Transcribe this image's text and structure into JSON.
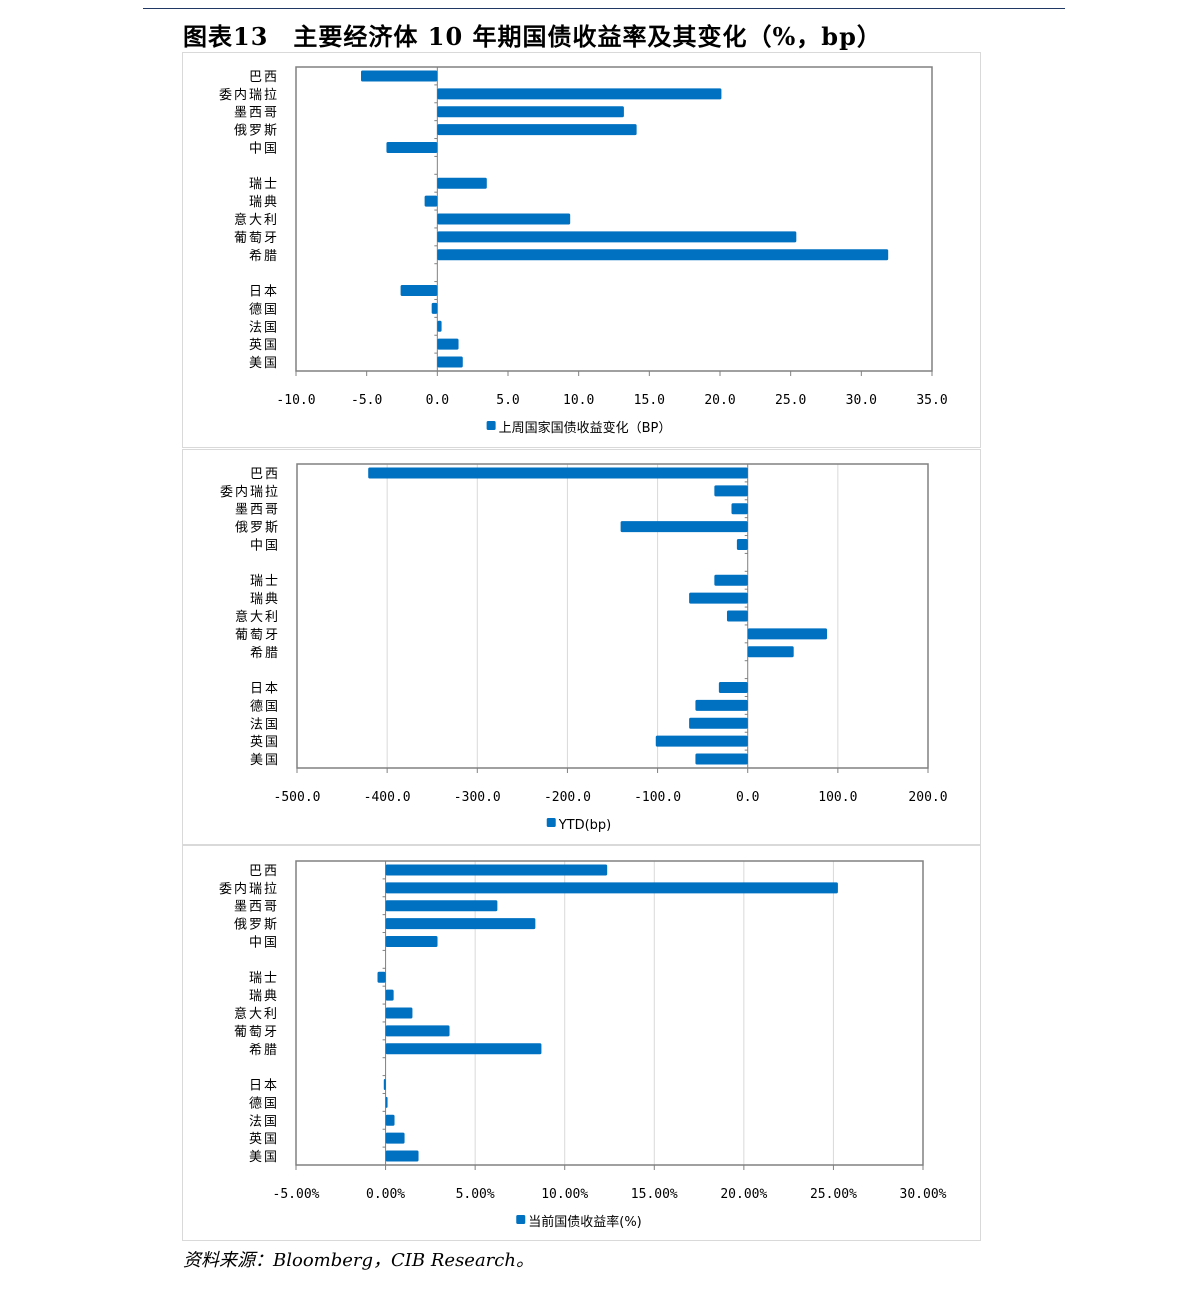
{
  "title": "图表13　主要经济体 10 年期国债收益率及其变化（%，bp）",
  "source": "资料来源：Bloomberg，CIB Research。",
  "colors": {
    "bar": "#0070c0",
    "axis": "#808080",
    "grid": "#d9d9d9"
  },
  "chart_data": [
    {
      "type": "bar",
      "orientation": "horizontal",
      "categories": [
        "巴西",
        "委内瑞拉",
        "墨西哥",
        "俄罗斯",
        "中国",
        "",
        "瑞士",
        "瑞典",
        "意大利",
        "葡萄牙",
        "希腊",
        "",
        "日本",
        "德国",
        "法国",
        "英国",
        "美国"
      ],
      "series": [
        {
          "name": "上周国家国债收益变化（BP）",
          "values": [
            -5.4,
            20.1,
            13.2,
            14.1,
            -3.6,
            null,
            3.5,
            -0.9,
            9.4,
            25.4,
            31.9,
            null,
            -2.6,
            -0.4,
            0.3,
            1.5,
            1.8
          ]
        }
      ],
      "xlim": [
        -10,
        35
      ],
      "xticks": [
        -10,
        -5,
        0,
        5,
        10,
        15,
        20,
        25,
        30,
        35
      ],
      "tick_labels": [
        "-10.0",
        "-5.0",
        "0.0",
        "5.0",
        "10.0",
        "15.0",
        "20.0",
        "25.0",
        "30.0",
        "35.0"
      ],
      "grid": false,
      "legend": "bottom"
    },
    {
      "type": "bar",
      "orientation": "horizontal",
      "categories": [
        "巴西",
        "委内瑞拉",
        "墨西哥",
        "俄罗斯",
        "中国",
        "",
        "瑞士",
        "瑞典",
        "意大利",
        "葡萄牙",
        "希腊",
        "",
        "日本",
        "德国",
        "法国",
        "英国",
        "美国"
      ],
      "series": [
        {
          "name": "YTD(bp)",
          "values": [
            -421,
            -37,
            -18,
            -141,
            -12,
            null,
            -37,
            -65,
            -23,
            88,
            51,
            null,
            -32,
            -58,
            -65,
            -102,
            -58
          ]
        }
      ],
      "xlim": [
        -500,
        200
      ],
      "xticks": [
        -500,
        -400,
        -300,
        -200,
        -100,
        0,
        100,
        200
      ],
      "tick_labels": [
        "-500.0",
        "-400.0",
        "-300.0",
        "-200.0",
        "-100.0",
        "0.0",
        "100.0",
        "200.0"
      ],
      "grid": true,
      "legend": "bottom"
    },
    {
      "type": "bar",
      "orientation": "horizontal",
      "categories": [
        "巴西",
        "委内瑞拉",
        "墨西哥",
        "俄罗斯",
        "中国",
        "",
        "瑞士",
        "瑞典",
        "意大利",
        "葡萄牙",
        "希腊",
        "",
        "日本",
        "德国",
        "法国",
        "英国",
        "美国"
      ],
      "series": [
        {
          "name": "当前国债收益率(%)",
          "values": [
            12.37,
            25.25,
            6.24,
            8.36,
            2.9,
            null,
            -0.45,
            0.45,
            1.5,
            3.57,
            8.7,
            null,
            -0.1,
            0.05,
            0.5,
            1.06,
            1.84
          ]
        }
      ],
      "xlim": [
        -5,
        30
      ],
      "xticks": [
        -5,
        0,
        5,
        10,
        15,
        20,
        25,
        30
      ],
      "tick_labels": [
        "-5.00%",
        "0.00%",
        "5.00%",
        "10.00%",
        "15.00%",
        "20.00%",
        "25.00%",
        "30.00%"
      ],
      "grid": true,
      "legend": "bottom"
    }
  ]
}
